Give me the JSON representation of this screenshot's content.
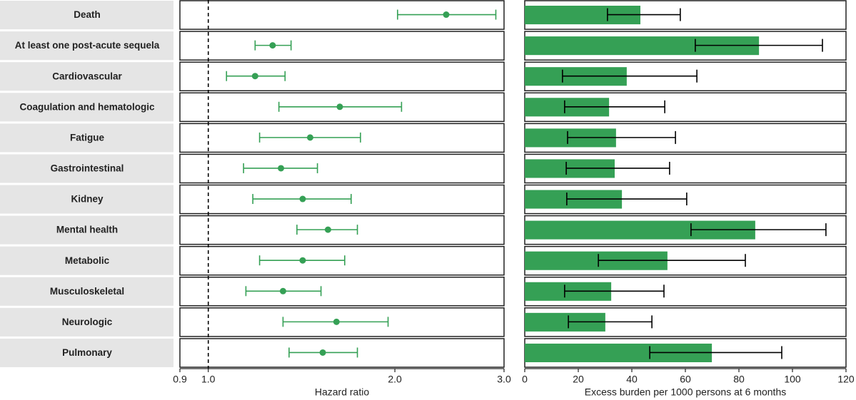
{
  "chart_data": [
    {
      "type": "forest",
      "orientation": "horizontal",
      "log_scale": true,
      "color": "#35a055",
      "categories": [
        "Death",
        "At least one post-acute sequela",
        "Cardiovascular",
        "Coagulation and hematologic",
        "Fatigue",
        "Gastrointestinal",
        "Kidney",
        "Mental health",
        "Metabolic",
        "Musculoskeletal",
        "Neurologic",
        "Pulmonary"
      ],
      "values": [
        2.42,
        1.27,
        1.19,
        1.63,
        1.46,
        1.31,
        1.42,
        1.56,
        1.42,
        1.32,
        1.61,
        1.53
      ],
      "low": [
        2.02,
        1.19,
        1.07,
        1.3,
        1.21,
        1.14,
        1.18,
        1.39,
        1.21,
        1.15,
        1.32,
        1.35
      ],
      "high": [
        2.91,
        1.36,
        1.33,
        2.05,
        1.76,
        1.5,
        1.7,
        1.74,
        1.66,
        1.52,
        1.95,
        1.74
      ],
      "reference_line": 1,
      "xlim": [
        0.9,
        3.0
      ],
      "xticks": [
        0.9,
        {
          "value": 1,
          "label": "1.0"
        },
        {
          "value": 2,
          "label": "2.0"
        },
        {
          "value": 3,
          "label": "3.0"
        }
      ],
      "xlabel": "Hazard ratio"
    },
    {
      "type": "bar",
      "orientation": "horizontal",
      "color": "#35a055",
      "error_color": "#000000",
      "values": [
        43.2,
        87.5,
        38.1,
        31.5,
        34.1,
        33.6,
        36.3,
        86.1,
        53.3,
        32.3,
        30.1,
        69.9
      ],
      "low": [
        30.9,
        63.7,
        14.1,
        14.9,
        16.0,
        15.5,
        15.7,
        62.1,
        27.5,
        14.9,
        16.3,
        46.7
      ],
      "high": [
        58.1,
        111.2,
        64.3,
        52.3,
        56.3,
        54.1,
        60.5,
        112.5,
        82.4,
        52.0,
        47.5,
        96.0
      ],
      "xlim": [
        0,
        120
      ],
      "xticks": [
        0,
        20,
        40,
        60,
        80,
        100,
        120
      ],
      "xlabel": "Excess burden per 1000 persons at 6 months"
    }
  ]
}
